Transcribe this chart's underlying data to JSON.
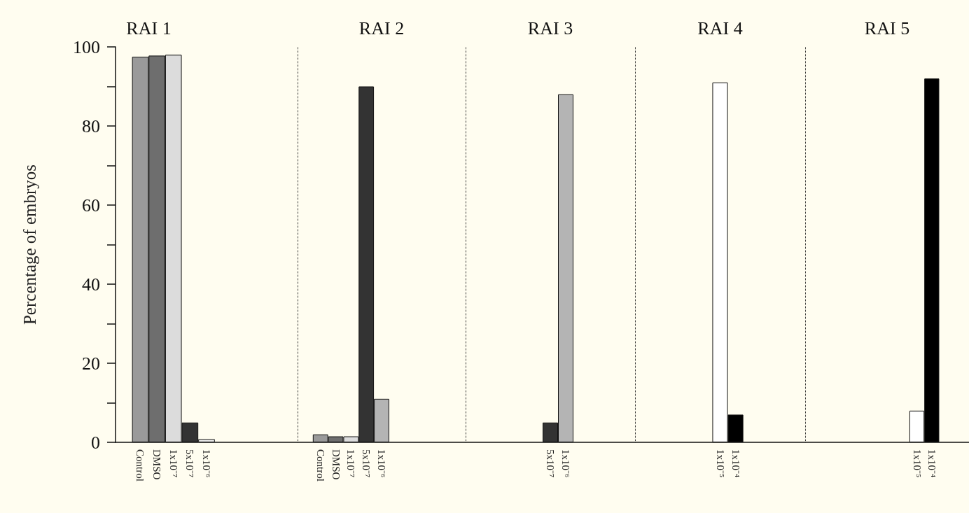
{
  "chart_data": [
    {
      "type": "bar",
      "title": "RAI 1",
      "ylabel": "Percentage of embryos",
      "categories": [
        null,
        "Control",
        "DMSO",
        "1x10⁻⁷",
        "5x10⁻⁷",
        "1x10⁻⁶",
        null,
        null,
        null,
        null,
        null
      ],
      "values": [
        null,
        97.5,
        97.8,
        98,
        5,
        0.8,
        null,
        null,
        null,
        null,
        null
      ],
      "colors": [
        "#ffffff",
        "#9a9a9a",
        "#6e6e6e",
        "#dcdcdc",
        "#333333",
        "#f0f0f0",
        "#ffffff",
        "#ffffff",
        "#ffffff",
        "#ffffff",
        "#ffffff"
      ],
      "ylim": [
        0,
        100
      ],
      "yticks": [
        0,
        {
          "value": 10,
          "label": null
        },
        20,
        {
          "value": 30,
          "label": null
        },
        40,
        {
          "value": 50,
          "label": null
        },
        60,
        {
          "value": 70,
          "label": null
        },
        80,
        {
          "value": 90,
          "label": null
        },
        100
      ]
    },
    {
      "type": "bar",
      "title": "RAI 2",
      "categories": [
        null,
        "Control",
        "DMSO",
        "1x10⁻⁷",
        "5x10⁻⁷",
        "1x10⁻⁶",
        null,
        null,
        null,
        null,
        null
      ],
      "values": [
        null,
        2,
        1.5,
        1.5,
        90,
        11,
        null,
        null,
        null,
        null,
        null
      ],
      "colors": [
        "#ffffff",
        "#9a9a9a",
        "#6e6e6e",
        "#dcdcdc",
        "#333333",
        "#b4b4b4",
        "#ffffff",
        "#ffffff",
        "#ffffff",
        "#ffffff",
        "#ffffff"
      ],
      "ylim": [
        0,
        100
      ],
      "tick_labels": "x"
    },
    {
      "type": "bar",
      "title": "RAI 3",
      "categories": [
        null,
        null,
        null,
        null,
        null,
        "5x10⁻⁷",
        "1x10⁻⁶",
        null,
        null,
        null,
        null
      ],
      "values": [
        null,
        null,
        null,
        null,
        null,
        5,
        88,
        null,
        null,
        null,
        null
      ],
      "colors": [
        "#ffffff",
        "#ffffff",
        "#ffffff",
        "#ffffff",
        "#ffffff",
        "#333333",
        "#b4b4b4",
        "#ffffff",
        "#ffffff",
        "#ffffff",
        "#ffffff"
      ],
      "ylim": [
        0,
        100
      ],
      "tick_labels": "x"
    },
    {
      "type": "bar",
      "title": "RAI 4",
      "categories": [
        null,
        null,
        null,
        null,
        null,
        "1x10⁻⁵",
        "1x10⁻⁴",
        null,
        null,
        null,
        null
      ],
      "values": [
        null,
        null,
        null,
        null,
        null,
        91,
        7,
        null,
        null,
        null,
        null
      ],
      "colors": [
        "#ffffff",
        "#ffffff",
        "#ffffff",
        "#ffffff",
        "#ffffff",
        "#ffffff",
        "#000000",
        "#ffffff",
        "#ffffff",
        "#ffffff",
        "#ffffff"
      ],
      "ylim": [
        0,
        100
      ],
      "tick_labels": "x"
    },
    {
      "type": "bar",
      "title": "RAI 5",
      "categories": [
        null,
        null,
        null,
        null,
        null,
        null,
        null,
        "1x10⁻⁵",
        "1x10⁻⁴",
        null,
        null
      ],
      "values": [
        null,
        null,
        null,
        null,
        null,
        null,
        null,
        8,
        92,
        null,
        null
      ],
      "colors": [
        "#ffffff",
        "#ffffff",
        "#ffffff",
        "#ffffff",
        "#ffffff",
        "#ffffff",
        "#ffffff",
        "#ffffff",
        "#000000",
        "#ffffff",
        "#ffffff"
      ],
      "ylim": [
        0,
        100
      ],
      "tick_labels": "x"
    }
  ]
}
